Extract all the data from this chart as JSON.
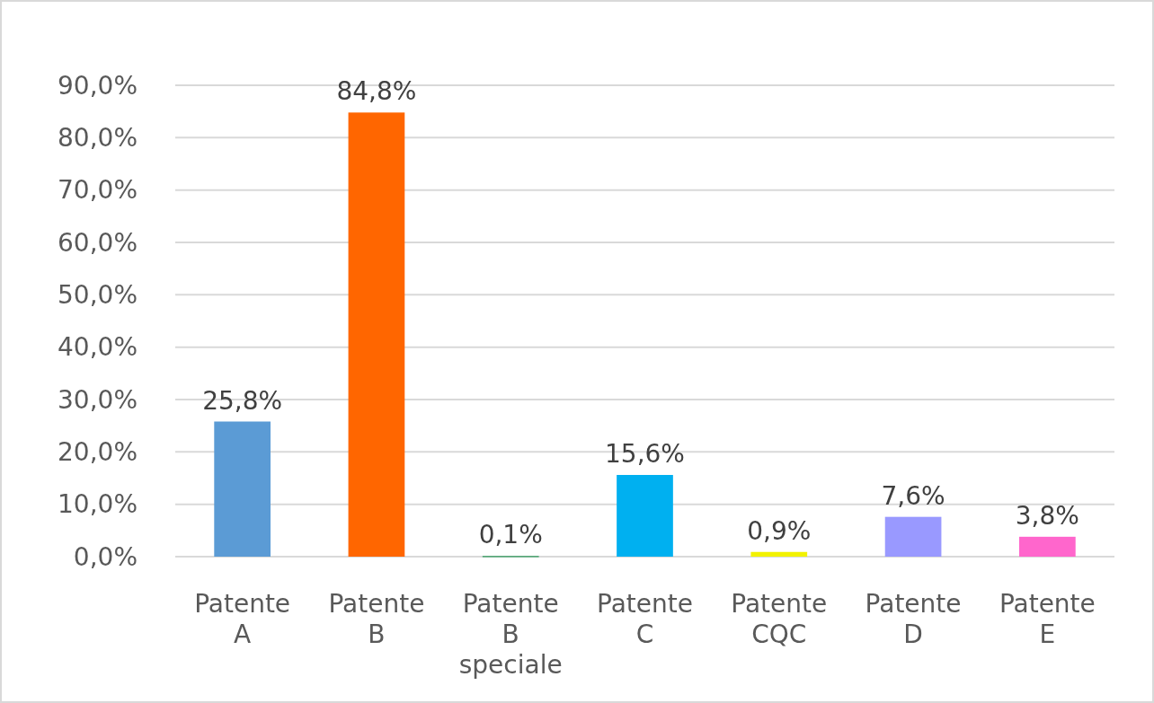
{
  "chart_data": {
    "type": "bar",
    "categories": [
      "Patente A",
      "Patente B",
      "Patente B speciale",
      "Patente C",
      "Patente CQC",
      "Patente D",
      "Patente E"
    ],
    "values": [
      25.8,
      84.8,
      0.1,
      15.6,
      0.9,
      7.6,
      3.8
    ],
    "colors": [
      "#5b9bd5",
      "#ff6600",
      "#00883a",
      "#00b0f0",
      "#f2f200",
      "#9999ff",
      "#ff66cc"
    ],
    "value_labels": [
      "25,8%",
      "84,8%",
      "0,1%",
      "15,6%",
      "0,9%",
      "7,6%",
      "3,8%"
    ],
    "ylim": [
      0,
      90
    ],
    "yticks": [
      {
        "value": 0,
        "label": "0,0%"
      },
      {
        "value": 10,
        "label": "10,0%"
      },
      {
        "value": 20,
        "label": "20,0%"
      },
      {
        "value": 30,
        "label": "30,0%"
      },
      {
        "value": 40,
        "label": "40,0%"
      },
      {
        "value": 50,
        "label": "50,0%"
      },
      {
        "value": 60,
        "label": "60,0%"
      },
      {
        "value": 70,
        "label": "70,0%"
      },
      {
        "value": 80,
        "label": "80,0%"
      },
      {
        "value": 90,
        "label": "90,0%"
      }
    ],
    "grid": true
  }
}
